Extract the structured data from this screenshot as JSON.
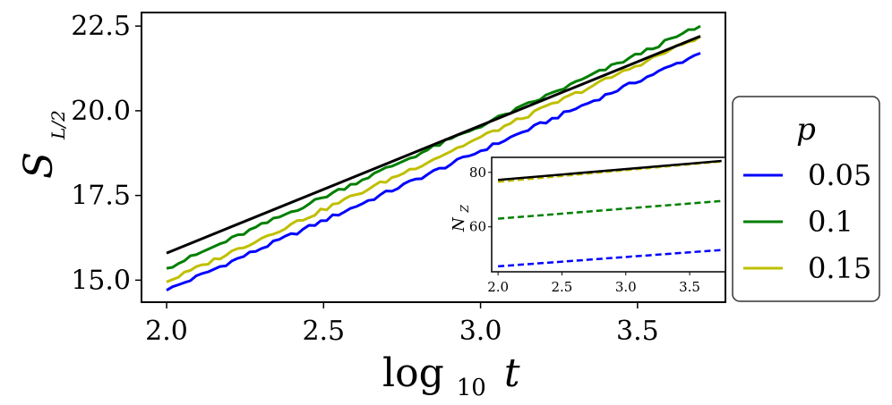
{
  "chart_data": [
    {
      "type": "line",
      "xlabel_base": "log",
      "xlabel_sub": "10",
      "xlabel_var": "t",
      "ylabel_main": "S",
      "ylabel_sub": "L/2",
      "xlim": [
        1.92,
        3.78
      ],
      "ylim": [
        14.35,
        22.9
      ],
      "xticks": [
        "2.0",
        "2.5",
        "3.0",
        "3.5"
      ],
      "yticks": [
        "15.0",
        "17.5",
        "20.0",
        "22.5"
      ],
      "grid": false,
      "legend": {
        "placement": "right-outside",
        "title": "p",
        "entries": [
          {
            "label": "0.05",
            "color": "#0000ff"
          },
          {
            "label": "0.1",
            "color": "#007f00"
          },
          {
            "label": "0.15",
            "color": "#bfbf00"
          }
        ]
      },
      "series": [
        {
          "p": "0.05",
          "color": "#0000ff",
          "x_start": 2.0,
          "x_end": 3.7,
          "y_start": 14.7,
          "y_end": 21.7
        },
        {
          "p": "0.1",
          "color": "#007f00",
          "x_start": 2.0,
          "x_end": 3.7,
          "y_start": 15.35,
          "y_end": 22.5
        },
        {
          "p": "0.15",
          "color": "#bfbf00",
          "x_start": 2.0,
          "x_end": 3.7,
          "y_start": 14.95,
          "y_end": 22.2
        },
        {
          "p": "fit",
          "color": "#000000",
          "x_start": 2.0,
          "x_end": 3.7,
          "y_start": 15.8,
          "y_end": 22.2
        }
      ]
    },
    {
      "type": "line",
      "ylabel_main": "N",
      "ylabel_sub": "Z",
      "xlim": [
        1.95,
        3.78
      ],
      "ylim": [
        43.5,
        85.5
      ],
      "xticks": [
        "2.0",
        "2.5",
        "3.0",
        "3.5"
      ],
      "yticks": [
        "60",
        "80"
      ],
      "series": [
        {
          "p": "0.05",
          "color": "#0000ff",
          "style": "dashed",
          "x": [
            2.0,
            3.75
          ],
          "y": [
            45.5,
            51.5
          ]
        },
        {
          "p": "0.1",
          "color": "#007f00",
          "style": "dashed",
          "x": [
            2.0,
            3.75
          ],
          "y": [
            63.0,
            69.5
          ]
        },
        {
          "p": "0.15",
          "color": "#bfbf00",
          "style": "dashed",
          "x": [
            2.0,
            3.75
          ],
          "y": [
            76.5,
            84.0
          ]
        },
        {
          "p": "fit",
          "color": "#000000",
          "style": "solid",
          "x": [
            2.0,
            3.75
          ],
          "y": [
            77.2,
            84.2
          ]
        }
      ]
    }
  ]
}
